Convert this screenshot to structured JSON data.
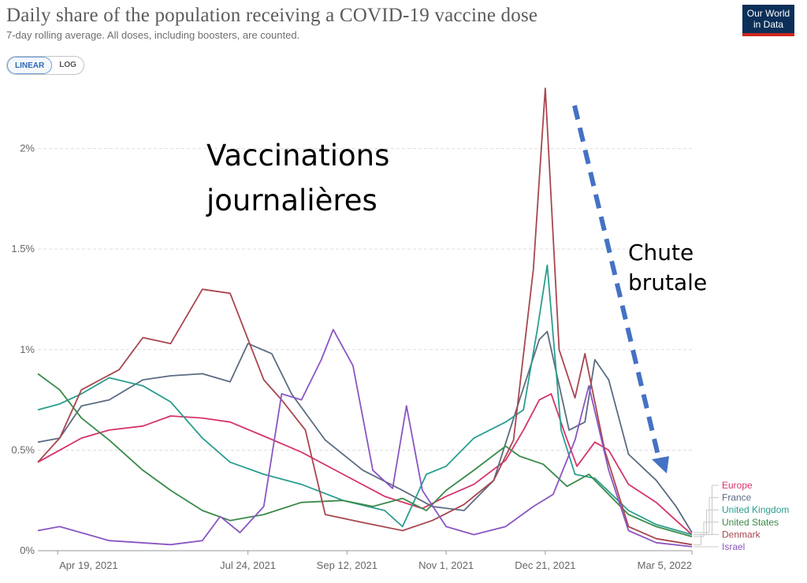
{
  "header": {
    "title": "Daily share of the population receiving a COVID-19 vaccine dose",
    "subtitle": "7-day rolling average. All doses, including boosters, are counted.",
    "logo_line1": "Our World",
    "logo_line2": "in Data"
  },
  "scale_toggle": {
    "linear_label": "LINEAR",
    "log_label": "LOG",
    "selected": "LINEAR"
  },
  "annotations": {
    "main_line1": "Vaccinations",
    "main_line2": "journalières",
    "drop_line1": "Chute",
    "drop_line2": "brutale"
  },
  "colors": {
    "arrow": "#4472c4"
  },
  "chart_data": {
    "type": "line",
    "title": "Daily share of the population receiving a COVID-19 vaccine dose",
    "subtitle": "7-day rolling average. All doses, including boosters, are counted.",
    "x_range": [
      "2021-04-09",
      "2022-03-05"
    ],
    "x_ticks": [
      {
        "date": "2021-04-19",
        "label": "Apr 19, 2021"
      },
      {
        "date": "2021-07-24",
        "label": "Jul 24, 2021"
      },
      {
        "date": "2021-09-12",
        "label": "Sep 12, 2021"
      },
      {
        "date": "2021-11-01",
        "label": "Nov 1, 2021"
      },
      {
        "date": "2021-12-21",
        "label": "Dec 21, 2021"
      },
      {
        "date": "2022-03-05",
        "label": "Mar 5, 2022"
      }
    ],
    "y_unit": "%",
    "ylim": [
      0,
      2.3
    ],
    "y_ticks": [
      {
        "value": 0,
        "label": "0%"
      },
      {
        "value": 0.5,
        "label": "0.5%"
      },
      {
        "value": 1,
        "label": "1%"
      },
      {
        "value": 1.5,
        "label": "1.5%"
      },
      {
        "value": 2,
        "label": "2%"
      }
    ],
    "grid": "horizontal dashed",
    "legend_position": "right, at line ends",
    "series": [
      {
        "name": "Europe",
        "color": "#d6336c",
        "points": [
          [
            "2021-04-09",
            0.44
          ],
          [
            "2021-04-20",
            0.5
          ],
          [
            "2021-05-01",
            0.56
          ],
          [
            "2021-05-15",
            0.6
          ],
          [
            "2021-06-01",
            0.62
          ],
          [
            "2021-06-15",
            0.67
          ],
          [
            "2021-07-01",
            0.66
          ],
          [
            "2021-07-15",
            0.64
          ],
          [
            "2021-08-01",
            0.57
          ],
          [
            "2021-08-20",
            0.49
          ],
          [
            "2021-09-10",
            0.38
          ],
          [
            "2021-10-01",
            0.27
          ],
          [
            "2021-10-20",
            0.21
          ],
          [
            "2021-11-01",
            0.27
          ],
          [
            "2021-11-15",
            0.33
          ],
          [
            "2021-12-01",
            0.45
          ],
          [
            "2021-12-10",
            0.6
          ],
          [
            "2021-12-18",
            0.75
          ],
          [
            "2021-12-24",
            0.78
          ],
          [
            "2021-12-31",
            0.58
          ],
          [
            "2022-01-06",
            0.42
          ],
          [
            "2022-01-15",
            0.54
          ],
          [
            "2022-01-22",
            0.5
          ],
          [
            "2022-02-01",
            0.33
          ],
          [
            "2022-02-15",
            0.24
          ],
          [
            "2022-02-25",
            0.15
          ],
          [
            "2022-03-05",
            0.08
          ]
        ]
      },
      {
        "name": "France",
        "color": "#5b6b82",
        "points": [
          [
            "2021-04-09",
            0.54
          ],
          [
            "2021-04-20",
            0.56
          ],
          [
            "2021-05-01",
            0.72
          ],
          [
            "2021-05-15",
            0.75
          ],
          [
            "2021-06-01",
            0.85
          ],
          [
            "2021-06-15",
            0.87
          ],
          [
            "2021-07-01",
            0.88
          ],
          [
            "2021-07-15",
            0.84
          ],
          [
            "2021-07-24",
            1.03
          ],
          [
            "2021-08-05",
            0.98
          ],
          [
            "2021-08-15",
            0.78
          ],
          [
            "2021-09-01",
            0.55
          ],
          [
            "2021-09-20",
            0.4
          ],
          [
            "2021-10-10",
            0.3
          ],
          [
            "2021-10-25",
            0.22
          ],
          [
            "2021-11-10",
            0.2
          ],
          [
            "2021-11-25",
            0.35
          ],
          [
            "2021-12-08",
            0.75
          ],
          [
            "2021-12-18",
            1.05
          ],
          [
            "2021-12-22",
            1.09
          ],
          [
            "2022-01-02",
            0.6
          ],
          [
            "2022-01-10",
            0.64
          ],
          [
            "2022-01-15",
            0.95
          ],
          [
            "2022-01-22",
            0.85
          ],
          [
            "2022-02-01",
            0.48
          ],
          [
            "2022-02-15",
            0.35
          ],
          [
            "2022-02-25",
            0.22
          ],
          [
            "2022-03-05",
            0.09
          ]
        ]
      },
      {
        "name": "United Kingdom",
        "color": "#2a9d8f",
        "points": [
          [
            "2021-04-09",
            0.7
          ],
          [
            "2021-04-20",
            0.73
          ],
          [
            "2021-05-01",
            0.78
          ],
          [
            "2021-05-15",
            0.86
          ],
          [
            "2021-06-01",
            0.82
          ],
          [
            "2021-06-15",
            0.74
          ],
          [
            "2021-07-01",
            0.56
          ],
          [
            "2021-07-15",
            0.44
          ],
          [
            "2021-08-01",
            0.38
          ],
          [
            "2021-08-20",
            0.33
          ],
          [
            "2021-09-10",
            0.25
          ],
          [
            "2021-10-01",
            0.2
          ],
          [
            "2021-10-10",
            0.12
          ],
          [
            "2021-10-22",
            0.38
          ],
          [
            "2021-11-01",
            0.42
          ],
          [
            "2021-11-15",
            0.56
          ],
          [
            "2021-12-01",
            0.64
          ],
          [
            "2021-12-10",
            0.7
          ],
          [
            "2021-12-17",
            1.1
          ],
          [
            "2021-12-22",
            1.42
          ],
          [
            "2021-12-29",
            0.6
          ],
          [
            "2022-01-05",
            0.38
          ],
          [
            "2022-01-15",
            0.36
          ],
          [
            "2022-02-01",
            0.2
          ],
          [
            "2022-02-15",
            0.13
          ],
          [
            "2022-03-05",
            0.08
          ]
        ]
      },
      {
        "name": "United States",
        "color": "#3a8a4a",
        "points": [
          [
            "2021-04-09",
            0.88
          ],
          [
            "2021-04-20",
            0.8
          ],
          [
            "2021-05-01",
            0.66
          ],
          [
            "2021-05-15",
            0.55
          ],
          [
            "2021-06-01",
            0.4
          ],
          [
            "2021-06-15",
            0.3
          ],
          [
            "2021-07-01",
            0.2
          ],
          [
            "2021-07-15",
            0.15
          ],
          [
            "2021-08-01",
            0.18
          ],
          [
            "2021-08-20",
            0.24
          ],
          [
            "2021-09-10",
            0.25
          ],
          [
            "2021-09-25",
            0.22
          ],
          [
            "2021-10-10",
            0.26
          ],
          [
            "2021-10-22",
            0.2
          ],
          [
            "2021-11-01",
            0.3
          ],
          [
            "2021-11-15",
            0.4
          ],
          [
            "2021-12-01",
            0.52
          ],
          [
            "2021-12-08",
            0.47
          ],
          [
            "2021-12-20",
            0.43
          ],
          [
            "2022-01-01",
            0.32
          ],
          [
            "2022-01-12",
            0.38
          ],
          [
            "2022-02-01",
            0.18
          ],
          [
            "2022-02-15",
            0.12
          ],
          [
            "2022-03-05",
            0.07
          ]
        ]
      },
      {
        "name": "Denmark",
        "color": "#a8464e",
        "points": [
          [
            "2021-04-09",
            0.44
          ],
          [
            "2021-04-20",
            0.56
          ],
          [
            "2021-05-01",
            0.8
          ],
          [
            "2021-05-20",
            0.9
          ],
          [
            "2021-06-01",
            1.06
          ],
          [
            "2021-06-15",
            1.03
          ],
          [
            "2021-07-01",
            1.3
          ],
          [
            "2021-07-15",
            1.28
          ],
          [
            "2021-08-01",
            0.85
          ],
          [
            "2021-08-10",
            0.75
          ],
          [
            "2021-08-22",
            0.6
          ],
          [
            "2021-09-01",
            0.18
          ],
          [
            "2021-09-20",
            0.14
          ],
          [
            "2021-10-10",
            0.1
          ],
          [
            "2021-10-25",
            0.15
          ],
          [
            "2021-11-10",
            0.23
          ],
          [
            "2021-11-25",
            0.35
          ],
          [
            "2021-12-05",
            0.55
          ],
          [
            "2021-12-15",
            1.4
          ],
          [
            "2021-12-21",
            2.3
          ],
          [
            "2021-12-28",
            1.0
          ],
          [
            "2022-01-05",
            0.76
          ],
          [
            "2022-01-10",
            0.98
          ],
          [
            "2022-01-20",
            0.5
          ],
          [
            "2022-02-01",
            0.12
          ],
          [
            "2022-02-15",
            0.06
          ],
          [
            "2022-03-05",
            0.03
          ]
        ]
      },
      {
        "name": "Israel",
        "color": "#8a56c2",
        "points": [
          [
            "2021-04-09",
            0.1
          ],
          [
            "2021-04-20",
            0.12
          ],
          [
            "2021-05-15",
            0.05
          ],
          [
            "2021-06-15",
            0.03
          ],
          [
            "2021-07-01",
            0.05
          ],
          [
            "2021-07-10",
            0.17
          ],
          [
            "2021-07-20",
            0.09
          ],
          [
            "2021-08-01",
            0.22
          ],
          [
            "2021-08-10",
            0.78
          ],
          [
            "2021-08-20",
            0.75
          ],
          [
            "2021-08-30",
            0.95
          ],
          [
            "2021-09-05",
            1.1
          ],
          [
            "2021-09-15",
            0.92
          ],
          [
            "2021-09-25",
            0.4
          ],
          [
            "2021-10-05",
            0.31
          ],
          [
            "2021-10-12",
            0.72
          ],
          [
            "2021-10-20",
            0.3
          ],
          [
            "2021-11-01",
            0.12
          ],
          [
            "2021-11-15",
            0.08
          ],
          [
            "2021-12-01",
            0.12
          ],
          [
            "2021-12-15",
            0.22
          ],
          [
            "2021-12-25",
            0.28
          ],
          [
            "2022-01-05",
            0.55
          ],
          [
            "2022-01-12",
            0.82
          ],
          [
            "2022-01-22",
            0.4
          ],
          [
            "2022-02-01",
            0.1
          ],
          [
            "2022-02-15",
            0.04
          ],
          [
            "2022-03-05",
            0.02
          ]
        ]
      }
    ]
  }
}
